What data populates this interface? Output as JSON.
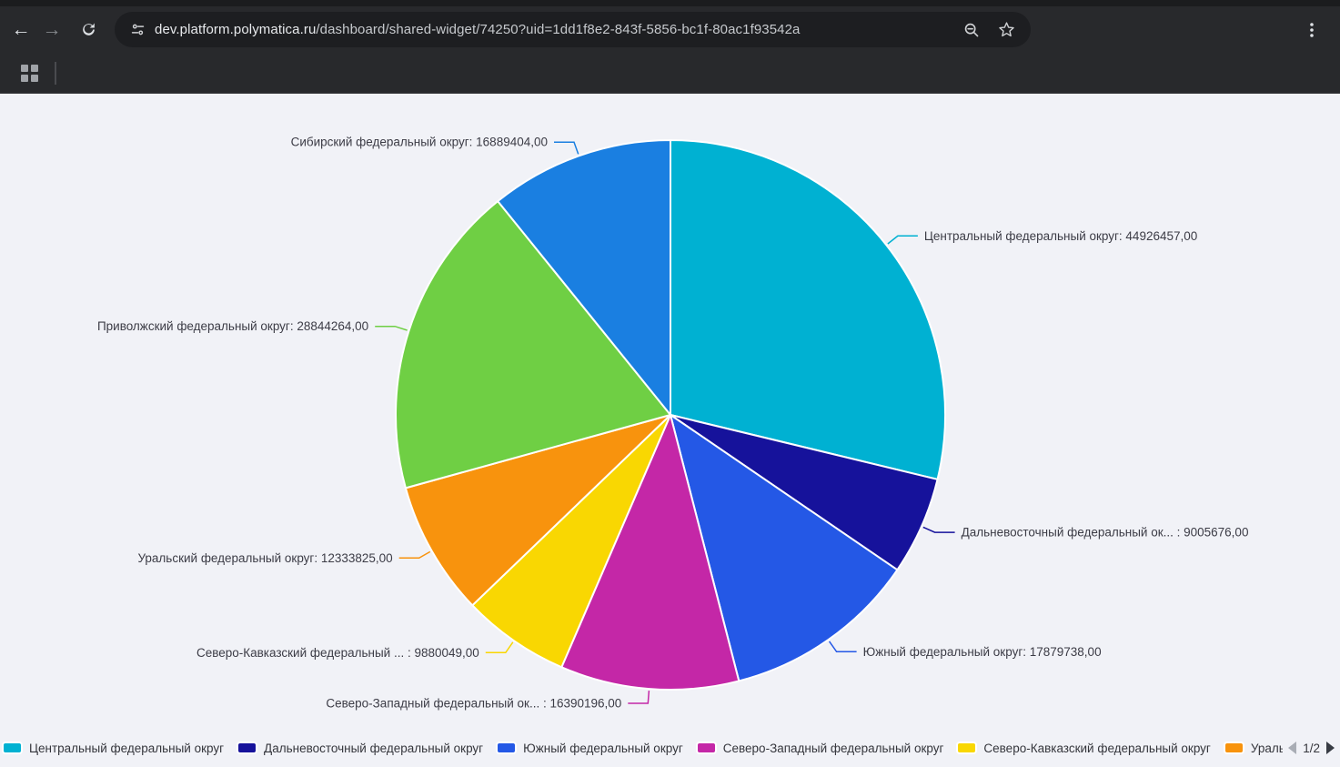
{
  "browser": {
    "url_domain": "dev.platform.polymatica.ru",
    "url_path": "/dashboard/shared-widget/74250?uid=1dd1f8e2-843f-5856-bc1f-80ac1f93542a"
  },
  "chart_data": {
    "type": "pie",
    "start_angle_deg": 0,
    "direction": "clockwise-from-top",
    "total": 156149609,
    "series": [
      {
        "name": "Центральный федеральный округ",
        "value": 44926457.0,
        "color": "#00b1d2",
        "callout": "Центральный федеральный округ: 44926457,00"
      },
      {
        "name": "Дальневосточный федеральный округ",
        "value": 9005676.0,
        "color": "#16129b",
        "callout": "Дальневосточный федеральный ок... : 9005676,00"
      },
      {
        "name": "Южный федеральный округ",
        "value": 17879738.0,
        "color": "#2458e6",
        "callout": "Южный федеральный округ: 17879738,00"
      },
      {
        "name": "Северо-Западный федеральный округ",
        "value": 16390196.0,
        "color": "#c427a7",
        "callout": "Северо-Западный федеральный ок... : 16390196,00"
      },
      {
        "name": "Северо-Кавказский федеральный округ",
        "value": 9880049.0,
        "color": "#f9d702",
        "callout": "Северо-Кавказский федеральный ... : 9880049,00"
      },
      {
        "name": "Уральский федеральный округ",
        "value": 12333825.0,
        "color": "#f8930d",
        "callout": "Уральский федеральный округ: 12333825,00"
      },
      {
        "name": "Приволжский федеральный округ",
        "value": 28844264.0,
        "color": "#6fcf44",
        "callout": "Приволжский федеральный округ: 28844264,00"
      },
      {
        "name": "Сибирский федеральный округ",
        "value": 16889404.0,
        "color": "#1a7fe1",
        "callout": "Сибирский федеральный округ: 16889404,00"
      }
    ],
    "legend": {
      "position": "bottom",
      "items": [
        {
          "label": "Центральный федеральный округ",
          "color": "#00b1d2"
        },
        {
          "label": "Дальневосточный федеральный округ",
          "color": "#16129b"
        },
        {
          "label": "Южный федеральный округ",
          "color": "#2458e6"
        },
        {
          "label": "Северо-Западный федеральный округ",
          "color": "#c427a7"
        },
        {
          "label": "Северо-Кавказский федеральный округ",
          "color": "#f9d702"
        },
        {
          "label": "Уральский феде",
          "color": "#f8930d"
        }
      ],
      "pager": {
        "page_label": "1/2",
        "prev_enabled": false,
        "next_enabled": true
      }
    }
  }
}
